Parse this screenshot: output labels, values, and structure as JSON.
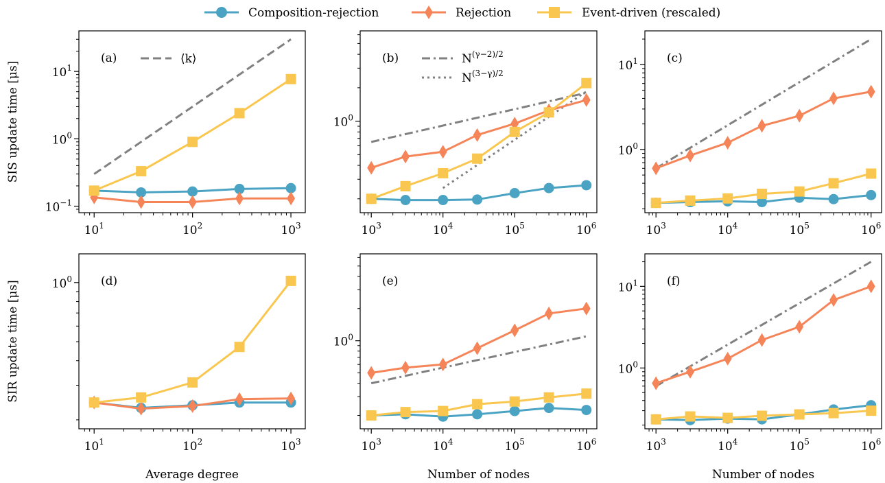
{
  "legend": {
    "entries": [
      {
        "label": "Composition-rejection",
        "color": "#4ba3c3",
        "marker": "circle"
      },
      {
        "label": "Rejection",
        "color": "#f58559",
        "marker": "diamond"
      },
      {
        "label": "Event-driven (rescaled)",
        "color": "#f9c74f",
        "marker": "square"
      }
    ]
  },
  "colors": {
    "guide": "#808080"
  },
  "chart_data": [
    {
      "id": "a",
      "panel_label": "(a)",
      "type": "line",
      "xscale": "log",
      "yscale": "log",
      "xlim": [
        7,
        1400
      ],
      "ylim": [
        0.08,
        40
      ],
      "xticks": [
        10,
        100,
        1000
      ],
      "xtick_labels": [
        {
          "b": "10",
          "e": "1"
        },
        {
          "b": "10",
          "e": "2"
        },
        {
          "b": "10",
          "e": "3"
        }
      ],
      "yticks": [
        0.1,
        1,
        10
      ],
      "ytick_labels": [
        {
          "b": "10",
          "e": "−1"
        },
        {
          "b": "10",
          "e": "0"
        },
        {
          "b": "10",
          "e": "1"
        }
      ],
      "ylabel": "SIS update time [μs]",
      "xlabel": "",
      "guides": [
        {
          "name": "⟨k⟩",
          "style": "dashed",
          "x": [
            10,
            1000
          ],
          "y": [
            0.3,
            30
          ]
        }
      ],
      "guide_legend": [
        {
          "style": "dashed",
          "label": "⟨k⟩"
        }
      ],
      "x": [
        10,
        30,
        100,
        300,
        1000
      ],
      "series": [
        {
          "name": "Composition-rejection",
          "values": [
            0.17,
            0.16,
            0.165,
            0.18,
            0.185
          ]
        },
        {
          "name": "Rejection",
          "values": [
            0.135,
            0.115,
            0.115,
            0.13,
            0.13
          ]
        },
        {
          "name": "Event-driven (rescaled)",
          "values": [
            0.17,
            0.33,
            0.9,
            2.4,
            7.7
          ]
        }
      ]
    },
    {
      "id": "b",
      "panel_label": "(b)",
      "type": "line",
      "xscale": "log",
      "yscale": "log",
      "xlim": [
        700,
        1400000
      ],
      "ylim": [
        0.15,
        6.5
      ],
      "xticks": [
        1000,
        10000,
        100000,
        1000000
      ],
      "xtick_labels": [
        {
          "b": "10",
          "e": "3"
        },
        {
          "b": "10",
          "e": "4"
        },
        {
          "b": "10",
          "e": "5"
        },
        {
          "b": "10",
          "e": "6"
        }
      ],
      "yticks": [
        1
      ],
      "ytick_labels": [
        {
          "b": "10",
          "e": "0"
        }
      ],
      "ylabel": "",
      "xlabel": "",
      "guides": [
        {
          "name": "N^((γ−2)/2)",
          "style": "dashdot",
          "x": [
            1000,
            1000000
          ],
          "y": [
            0.65,
            1.8
          ]
        },
        {
          "name": "N^((3−γ)/2)",
          "style": "dotted",
          "x": [
            10000,
            1000000
          ],
          "y": [
            0.25,
            1.85
          ]
        }
      ],
      "guide_legend": [
        {
          "style": "dashdot",
          "label": "N",
          "exp": "(γ−2)/2"
        },
        {
          "style": "dotted",
          "label": "N",
          "exp": "(3−γ)/2"
        }
      ],
      "x": [
        1000,
        3000,
        10000,
        30000,
        100000,
        300000,
        1000000
      ],
      "series": [
        {
          "name": "Composition-rejection",
          "values": [
            0.2,
            0.195,
            0.195,
            0.197,
            0.225,
            0.25,
            0.265
          ]
        },
        {
          "name": "Rejection",
          "values": [
            0.38,
            0.48,
            0.53,
            0.75,
            0.95,
            1.25,
            1.55
          ]
        },
        {
          "name": "Event-driven (rescaled)",
          "values": [
            0.2,
            0.26,
            0.34,
            0.46,
            0.8,
            1.2,
            2.2
          ]
        }
      ]
    },
    {
      "id": "c",
      "panel_label": "(c)",
      "type": "line",
      "xscale": "log",
      "yscale": "log",
      "xlim": [
        700,
        1400000
      ],
      "ylim": [
        0.18,
        25
      ],
      "xticks": [
        1000,
        10000,
        100000,
        1000000
      ],
      "xtick_labels": [
        {
          "b": "10",
          "e": "3"
        },
        {
          "b": "10",
          "e": "4"
        },
        {
          "b": "10",
          "e": "5"
        },
        {
          "b": "10",
          "e": "6"
        }
      ],
      "yticks": [
        1,
        10
      ],
      "ytick_labels": [
        {
          "b": "10",
          "e": "0"
        },
        {
          "b": "10",
          "e": "1"
        }
      ],
      "ylabel": "",
      "xlabel": "",
      "guides": [
        {
          "name": "N^((3−γ)/2)",
          "style": "dashdot",
          "x": [
            1000,
            1000000
          ],
          "y": [
            0.6,
            20
          ]
        }
      ],
      "guide_legend": [],
      "x": [
        1000,
        3000,
        10000,
        30000,
        100000,
        300000,
        1000000
      ],
      "series": [
        {
          "name": "Composition-rejection",
          "values": [
            0.235,
            0.24,
            0.245,
            0.24,
            0.27,
            0.26,
            0.29
          ]
        },
        {
          "name": "Rejection",
          "values": [
            0.6,
            0.85,
            1.2,
            1.9,
            2.5,
            4.0,
            4.8
          ]
        },
        {
          "name": "Event-driven (rescaled)",
          "values": [
            0.235,
            0.25,
            0.265,
            0.3,
            0.32,
            0.4,
            0.52
          ]
        }
      ]
    },
    {
      "id": "d",
      "panel_label": "(d)",
      "type": "line",
      "xscale": "log",
      "yscale": "log",
      "xlim": [
        7,
        1400
      ],
      "ylim": [
        0.18,
        1.4
      ],
      "xticks": [
        10,
        100,
        1000
      ],
      "xtick_labels": [
        {
          "b": "10",
          "e": "1"
        },
        {
          "b": "10",
          "e": "2"
        },
        {
          "b": "10",
          "e": "3"
        }
      ],
      "yticks": [
        1
      ],
      "ytick_labels": [
        {
          "b": "10",
          "e": "0"
        }
      ],
      "ylabel": "SIR update time [μs]",
      "xlabel": "Average degree",
      "guides": [],
      "guide_legend": [],
      "x": [
        10,
        30,
        100,
        300,
        1000
      ],
      "series": [
        {
          "name": "Composition-rejection",
          "values": [
            0.245,
            0.23,
            0.237,
            0.245,
            0.245
          ]
        },
        {
          "name": "Rejection",
          "values": [
            0.245,
            0.228,
            0.235,
            0.255,
            0.257
          ]
        },
        {
          "name": "Event-driven (rescaled)",
          "values": [
            0.245,
            0.26,
            0.31,
            0.47,
            1.02
          ]
        }
      ]
    },
    {
      "id": "e",
      "panel_label": "(e)",
      "type": "line",
      "xscale": "log",
      "yscale": "log",
      "xlim": [
        700,
        1400000
      ],
      "ylim": [
        0.15,
        6.5
      ],
      "xticks": [
        1000,
        10000,
        100000,
        1000000
      ],
      "xtick_labels": [
        {
          "b": "10",
          "e": "3"
        },
        {
          "b": "10",
          "e": "4"
        },
        {
          "b": "10",
          "e": "5"
        },
        {
          "b": "10",
          "e": "6"
        }
      ],
      "yticks": [
        1
      ],
      "ytick_labels": [
        {
          "b": "10",
          "e": "0"
        }
      ],
      "ylabel": "",
      "xlabel": "Number of nodes",
      "guides": [
        {
          "name": "N^((γ−2)/2)",
          "style": "dashdot",
          "x": [
            1000,
            1000000
          ],
          "y": [
            0.4,
            1.1
          ]
        }
      ],
      "guide_legend": [],
      "x": [
        1000,
        3000,
        10000,
        30000,
        100000,
        300000,
        1000000
      ],
      "series": [
        {
          "name": "Composition-rejection",
          "values": [
            0.2,
            0.205,
            0.195,
            0.205,
            0.22,
            0.235,
            0.225
          ]
        },
        {
          "name": "Rejection",
          "values": [
            0.5,
            0.56,
            0.6,
            0.85,
            1.25,
            1.8,
            2.0
          ]
        },
        {
          "name": "Event-driven (rescaled)",
          "values": [
            0.2,
            0.215,
            0.22,
            0.255,
            0.27,
            0.295,
            0.32
          ]
        }
      ]
    },
    {
      "id": "f",
      "panel_label": "(f)",
      "type": "line",
      "xscale": "log",
      "yscale": "log",
      "xlim": [
        700,
        1400000
      ],
      "ylim": [
        0.18,
        25
      ],
      "xticks": [
        1000,
        10000,
        100000,
        1000000
      ],
      "xtick_labels": [
        {
          "b": "10",
          "e": "3"
        },
        {
          "b": "10",
          "e": "4"
        },
        {
          "b": "10",
          "e": "5"
        },
        {
          "b": "10",
          "e": "6"
        }
      ],
      "yticks": [
        1,
        10
      ],
      "ytick_labels": [
        {
          "b": "10",
          "e": "0"
        },
        {
          "b": "10",
          "e": "1"
        }
      ],
      "ylabel": "",
      "xlabel": "Number of nodes",
      "guides": [
        {
          "name": "N^((3−γ)/2)",
          "style": "dashdot",
          "x": [
            1000,
            1000000
          ],
          "y": [
            0.6,
            20
          ]
        }
      ],
      "guide_legend": [],
      "x": [
        1000,
        3000,
        10000,
        30000,
        100000,
        300000,
        1000000
      ],
      "series": [
        {
          "name": "Composition-rejection",
          "values": [
            0.235,
            0.23,
            0.24,
            0.235,
            0.27,
            0.31,
            0.35
          ]
        },
        {
          "name": "Rejection",
          "values": [
            0.65,
            0.9,
            1.3,
            2.2,
            3.2,
            6.8,
            10.0
          ]
        },
        {
          "name": "Event-driven (rescaled)",
          "values": [
            0.235,
            0.255,
            0.245,
            0.26,
            0.27,
            0.28,
            0.3
          ]
        }
      ]
    }
  ]
}
